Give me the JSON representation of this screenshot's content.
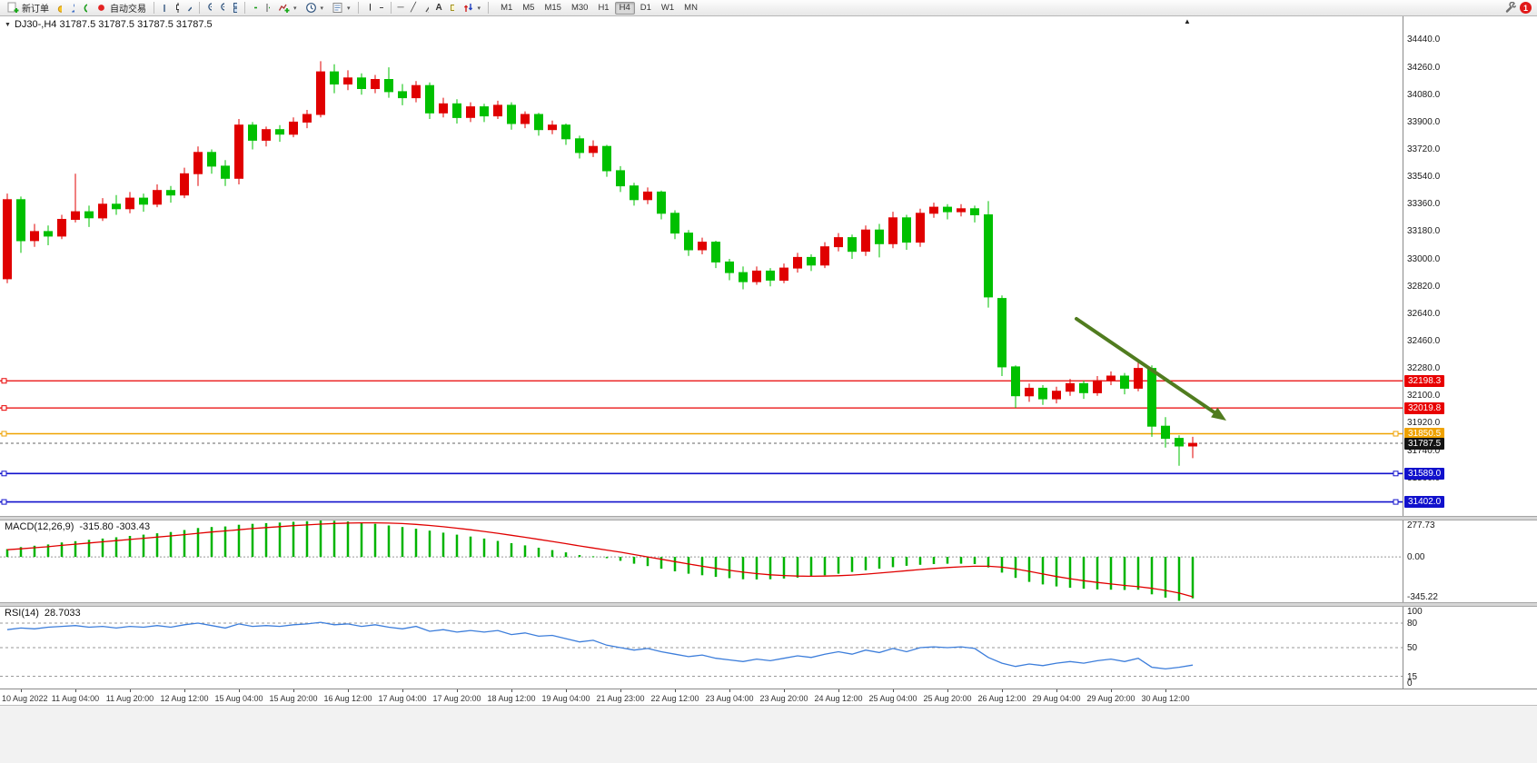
{
  "toolbar": {
    "new_order": "新订单",
    "auto_trading": "自动交易",
    "timeframes": [
      "M1",
      "M5",
      "M15",
      "M30",
      "H1",
      "H4",
      "D1",
      "W1",
      "MN"
    ],
    "active_timeframe": "H4",
    "notification_badge": "1"
  },
  "glyphs": {
    "dropdown": "▼",
    "caret": "▾",
    "scroll_marker": "▲",
    "hline_tool": "─",
    "trendline_tool": "╱",
    "text_tool": "A"
  },
  "chart": {
    "symbol_info": "DJ30-,H4 31787.5 31787.5 31787.5 31787.5",
    "price_ticks": [
      34440,
      34260,
      34080,
      33900,
      33720,
      33540,
      33360,
      33180,
      33000,
      32820,
      32640,
      32460,
      32280,
      32100,
      31920,
      31740,
      31560,
      31380
    ],
    "levels": [
      {
        "name": "resistance-line-1",
        "price": 32198.3,
        "label": "32198.3",
        "color": "#e80000",
        "w": 1.2,
        "handles": "left"
      },
      {
        "name": "resistance-line-2",
        "price": 32019.8,
        "label": "32019.8",
        "color": "#e80000",
        "w": 1.2,
        "handles": "left"
      },
      {
        "name": "support-line-orange",
        "price": 31850.5,
        "label": "31850.5",
        "color": "#efa200",
        "w": 1.6,
        "handles": "both"
      },
      {
        "name": "current-price-line",
        "price": 31787.5,
        "label": "31787.5",
        "color": "#666666",
        "w": 1,
        "dashed": true,
        "tag": "#141414"
      },
      {
        "name": "support-line-blue-1",
        "price": 31589.0,
        "label": "31589.0",
        "color": "#1111cc",
        "w": 1.6,
        "handles": "both"
      },
      {
        "name": "support-line-blue-2",
        "price": 31402.0,
        "label": "31402.0",
        "color": "#1111cc",
        "w": 1.6,
        "handles": "both"
      }
    ],
    "trend_arrow": {
      "from": [
        1185,
        333
      ],
      "to": [
        1350,
        445
      ],
      "color": "#507c1f",
      "width": 4
    }
  },
  "indicators": {
    "macd": {
      "name": "MACD(12,26,9)",
      "values": "-315.80 -303.43"
    },
    "rsi": {
      "name": "RSI(14)",
      "value": "28.7033"
    }
  },
  "colors": {
    "candle_up": "#e00000",
    "candle_down": "#00c000",
    "macd_hist": "#00b400",
    "macd_signal": "#e00000",
    "rsi_line": "#3d7edb"
  },
  "chart_data": [
    {
      "type": "candlestick",
      "symbol": "DJ30-",
      "timeframe": "H4",
      "ylim": [
        31310,
        34595
      ],
      "x_label_first_index": 1,
      "x_label_step": 4,
      "x_labels": [
        "10 Aug 2022",
        "11 Aug 04:00",
        "11 Aug 20:00",
        "12 Aug 12:00",
        "15 Aug 04:00",
        "15 Aug 20:00",
        "16 Aug 12:00",
        "17 Aug 04:00",
        "17 Aug 20:00",
        "18 Aug 12:00",
        "19 Aug 04:00",
        "21 Aug 23:00",
        "22 Aug 12:00",
        "23 Aug 04:00",
        "23 Aug 20:00",
        "24 Aug 12:00",
        "25 Aug 04:00",
        "25 Aug 20:00",
        "26 Aug 12:00",
        "29 Aug 04:00",
        "29 Aug 20:00",
        "30 Aug 12:00"
      ],
      "ohlc": [
        [
          32870,
          33430,
          32840,
          33390
        ],
        [
          33390,
          33410,
          33040,
          33120
        ],
        [
          33120,
          33230,
          33080,
          33180
        ],
        [
          33180,
          33220,
          33090,
          33150
        ],
        [
          33150,
          33290,
          33130,
          33260
        ],
        [
          33260,
          33560,
          33240,
          33310
        ],
        [
          33310,
          33350,
          33210,
          33270
        ],
        [
          33270,
          33400,
          33250,
          33360
        ],
        [
          33360,
          33420,
          33290,
          33330
        ],
        [
          33330,
          33440,
          33300,
          33400
        ],
        [
          33400,
          33430,
          33310,
          33360
        ],
        [
          33360,
          33490,
          33340,
          33450
        ],
        [
          33450,
          33480,
          33370,
          33420
        ],
        [
          33420,
          33600,
          33400,
          33560
        ],
        [
          33560,
          33740,
          33480,
          33700
        ],
        [
          33700,
          33720,
          33560,
          33610
        ],
        [
          33610,
          33650,
          33480,
          33530
        ],
        [
          33530,
          33920,
          33490,
          33880
        ],
        [
          33880,
          33900,
          33720,
          33780
        ],
        [
          33780,
          33870,
          33740,
          33850
        ],
        [
          33850,
          33880,
          33770,
          33820
        ],
        [
          33820,
          33930,
          33800,
          33900
        ],
        [
          33900,
          33980,
          33860,
          33950
        ],
        [
          33950,
          34300,
          33930,
          34230
        ],
        [
          34230,
          34280,
          34090,
          34150
        ],
        [
          34150,
          34240,
          34110,
          34190
        ],
        [
          34190,
          34220,
          34080,
          34120
        ],
        [
          34120,
          34210,
          34090,
          34180
        ],
        [
          34180,
          34260,
          34060,
          34100
        ],
        [
          34100,
          34150,
          34010,
          34060
        ],
        [
          34060,
          34170,
          34030,
          34140
        ],
        [
          34140,
          34160,
          33920,
          33960
        ],
        [
          33960,
          34060,
          33930,
          34020
        ],
        [
          34020,
          34050,
          33890,
          33930
        ],
        [
          33930,
          34030,
          33900,
          34000
        ],
        [
          34000,
          34020,
          33900,
          33940
        ],
        [
          33940,
          34040,
          33920,
          34010
        ],
        [
          34010,
          34030,
          33850,
          33890
        ],
        [
          33890,
          33970,
          33860,
          33950
        ],
        [
          33950,
          33960,
          33810,
          33850
        ],
        [
          33850,
          33910,
          33820,
          33880
        ],
        [
          33880,
          33890,
          33750,
          33790
        ],
        [
          33790,
          33810,
          33660,
          33700
        ],
        [
          33700,
          33780,
          33670,
          33740
        ],
        [
          33740,
          33750,
          33540,
          33580
        ],
        [
          33580,
          33610,
          33440,
          33480
        ],
        [
          33480,
          33500,
          33350,
          33390
        ],
        [
          33390,
          33470,
          33360,
          33440
        ],
        [
          33440,
          33450,
          33260,
          33300
        ],
        [
          33300,
          33320,
          33130,
          33170
        ],
        [
          33170,
          33190,
          33020,
          33060
        ],
        [
          33060,
          33140,
          33030,
          33110
        ],
        [
          33110,
          33120,
          32940,
          32980
        ],
        [
          32980,
          33000,
          32860,
          32910
        ],
        [
          32910,
          32950,
          32800,
          32850
        ],
        [
          32850,
          32950,
          32830,
          32920
        ],
        [
          32920,
          32940,
          32820,
          32860
        ],
        [
          32860,
          32970,
          32840,
          32940
        ],
        [
          32940,
          33040,
          32910,
          33010
        ],
        [
          33010,
          33030,
          32920,
          32960
        ],
        [
          32960,
          33110,
          32940,
          33080
        ],
        [
          33080,
          33170,
          33050,
          33140
        ],
        [
          33140,
          33160,
          33000,
          33050
        ],
        [
          33050,
          33220,
          33020,
          33190
        ],
        [
          33190,
          33230,
          33010,
          33100
        ],
        [
          33100,
          33310,
          33070,
          33270
        ],
        [
          33270,
          33290,
          33060,
          33110
        ],
        [
          33110,
          33330,
          33080,
          33300
        ],
        [
          33300,
          33370,
          33270,
          33340
        ],
        [
          33340,
          33360,
          33260,
          33310
        ],
        [
          33310,
          33360,
          33280,
          33330
        ],
        [
          33330,
          33350,
          33240,
          33290
        ],
        [
          33290,
          33380,
          32680,
          32750
        ],
        [
          32740,
          32760,
          32230,
          32290
        ],
        [
          32290,
          32300,
          32020,
          32100
        ],
        [
          32100,
          32180,
          32060,
          32150
        ],
        [
          32150,
          32170,
          32040,
          32080
        ],
        [
          32080,
          32160,
          32050,
          32130
        ],
        [
          32130,
          32210,
          32100,
          32180
        ],
        [
          32180,
          32200,
          32080,
          32120
        ],
        [
          32120,
          32230,
          32100,
          32200
        ],
        [
          32200,
          32260,
          32170,
          32230
        ],
        [
          32230,
          32250,
          32110,
          32150
        ],
        [
          32150,
          32330,
          32130,
          32280
        ],
        [
          32280,
          32300,
          31830,
          31900
        ],
        [
          31900,
          31960,
          31760,
          31820
        ],
        [
          31820,
          31840,
          31640,
          31770
        ],
        [
          31770,
          31830,
          31690,
          31787.5
        ]
      ]
    },
    {
      "type": "bar",
      "name": "MACD(12,26,9)",
      "values_label": "-315.80 -303.43",
      "ylim": [
        -345.22,
        277.73
      ],
      "yticks": [
        {
          "v": 277.73,
          "label": "277.73"
        },
        {
          "v": 0,
          "label": "0.00"
        },
        {
          "v": -345.22,
          "label": "-345.22"
        }
      ],
      "histogram": [
        60,
        75,
        85,
        95,
        110,
        120,
        130,
        140,
        150,
        160,
        170,
        180,
        190,
        205,
        220,
        228,
        232,
        245,
        252,
        258,
        262,
        268,
        272,
        277,
        275,
        270,
        262,
        252,
        240,
        228,
        215,
        200,
        185,
        170,
        155,
        140,
        122,
        105,
        88,
        70,
        52,
        35,
        15,
        5,
        -10,
        -30,
        -52,
        -70,
        -90,
        -110,
        -128,
        -140,
        -152,
        -162,
        -170,
        -172,
        -170,
        -165,
        -158,
        -150,
        -140,
        -128,
        -115,
        -102,
        -90,
        -78,
        -68,
        -60,
        -55,
        -52,
        -52,
        -55,
        -80,
        -120,
        -160,
        -190,
        -210,
        -225,
        -235,
        -242,
        -248,
        -250,
        -252,
        -250,
        -285,
        -310,
        -335,
        -315.8
      ],
      "signal": [
        55,
        62,
        70,
        78,
        88,
        97,
        106,
        115,
        124,
        133,
        142,
        151,
        160,
        170,
        180,
        190,
        198,
        207,
        216,
        224,
        231,
        238,
        244,
        250,
        255,
        258,
        260,
        260,
        258,
        254,
        248,
        240,
        230,
        219,
        207,
        194,
        180,
        165,
        150,
        134,
        118,
        101,
        84,
        68,
        52,
        36,
        18,
        0,
        -18,
        -36,
        -54,
        -71,
        -87,
        -102,
        -116,
        -127,
        -136,
        -142,
        -146,
        -147,
        -146,
        -143,
        -138,
        -131,
        -123,
        -114,
        -105,
        -96,
        -88,
        -81,
        -75,
        -71,
        -71,
        -78,
        -92,
        -110,
        -130,
        -149,
        -166,
        -181,
        -194,
        -206,
        -217,
        -227,
        -239,
        -255,
        -275,
        -303.43
      ]
    },
    {
      "type": "line",
      "name": "RSI(14)",
      "value_label": "28.7033",
      "ylim": [
        0,
        100
      ],
      "levels": [
        80,
        50,
        15
      ],
      "yticks": [
        {
          "v": 100,
          "label": "100"
        },
        {
          "v": 80,
          "label": "80"
        },
        {
          "v": 50,
          "label": "50"
        },
        {
          "v": 15,
          "label": "15"
        },
        {
          "v": 0,
          "label": "0"
        }
      ],
      "values": [
        72,
        74,
        73,
        75,
        76,
        77,
        75,
        76,
        74,
        76,
        75,
        77,
        75,
        78,
        80,
        77,
        74,
        79,
        76,
        77,
        76,
        78,
        79,
        81,
        78,
        79,
        76,
        78,
        75,
        73,
        76,
        70,
        72,
        69,
        71,
        69,
        71,
        66,
        68,
        64,
        65,
        61,
        57,
        59,
        53,
        50,
        47,
        49,
        45,
        42,
        39,
        41,
        37,
        35,
        33,
        36,
        34,
        37,
        40,
        38,
        42,
        45,
        42,
        47,
        44,
        49,
        45,
        50,
        51,
        50,
        51,
        49,
        38,
        31,
        27,
        30,
        28,
        31,
        33,
        31,
        34,
        36,
        33,
        37,
        26,
        24,
        26,
        28.7
      ]
    }
  ]
}
